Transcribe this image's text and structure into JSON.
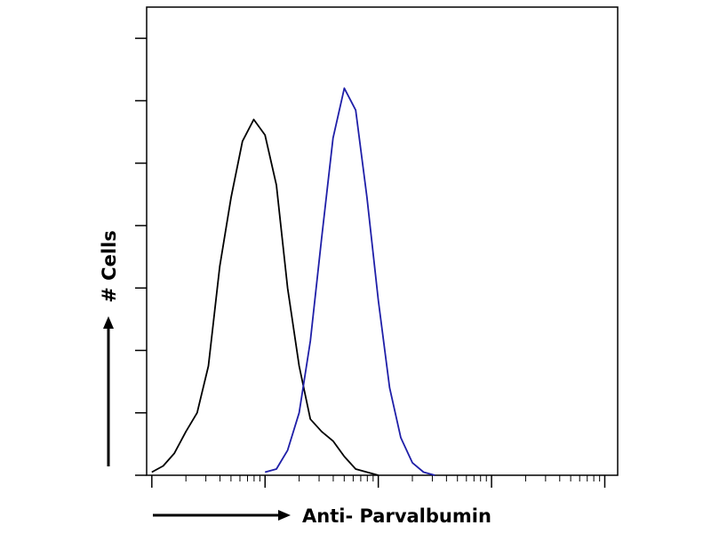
{
  "chart_data": {
    "type": "line",
    "y_label": "# Cells",
    "x_label": "Anti- Parvalbumin",
    "x_scale": "log",
    "x": [
      1,
      1.26,
      1.58,
      2,
      2.51,
      3.16,
      3.98,
      5.01,
      6.31,
      7.94,
      10,
      12.6,
      15.8,
      20,
      25.1,
      31.6,
      39.8,
      50.1,
      63.1,
      79.4,
      100,
      126,
      158,
      200,
      251,
      316
    ],
    "series": [
      {
        "color": "#000000",
        "values": [
          1,
          3,
          7,
          14,
          20,
          35,
          67,
          89,
          107,
          114,
          109,
          93,
          60,
          35,
          18,
          14,
          11,
          6,
          2,
          1,
          0,
          null,
          null,
          null,
          null,
          null
        ]
      },
      {
        "color": "#1f1fa8",
        "values": [
          null,
          null,
          null,
          null,
          null,
          null,
          null,
          null,
          null,
          null,
          1,
          2,
          8,
          20,
          43,
          76,
          108,
          124,
          117,
          89,
          56,
          28,
          12,
          4,
          1,
          0
        ]
      }
    ],
    "xlim": [
      0.9,
      13000
    ],
    "xticks": [
      1,
      10,
      100,
      1000,
      10000
    ],
    "ylim": [
      0,
      150
    ],
    "yticks": [
      0,
      20,
      40,
      60,
      80,
      100,
      120,
      140
    ]
  }
}
